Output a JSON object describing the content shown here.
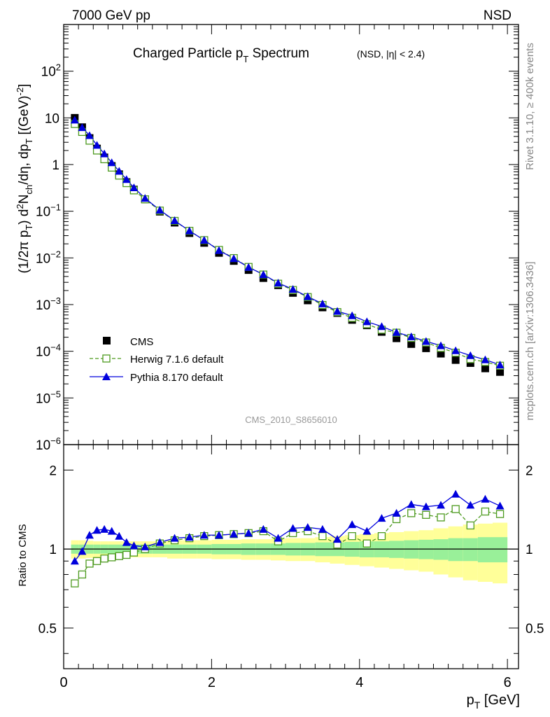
{
  "header": {
    "left": "7000 GeV pp",
    "right": "NSD"
  },
  "side_text": {
    "rivet": "Rivet 3.1.10, ≥ 400k events",
    "mcplots": "mcplots.cern.ch [arXiv:1306.3436]"
  },
  "watermark": "CMS_2010_S8656010",
  "colors": {
    "cms": "#000000",
    "herwig": "#4d9a1f",
    "pythia": "#0000dd",
    "band_inner": "#99f099",
    "band_outer": "#ffff99"
  },
  "chart_data": [
    {
      "type": "scatter",
      "title": "Charged Particle p",
      "title_sub": "T",
      "title_tail": " Spectrum",
      "title_extra": "(NSD, |η| < 2.4)",
      "ylabel": "(1/2π p_T) d²N_ch/dη, dp_T [(GeV)⁻²]",
      "yscale": "log",
      "ylim": [
        1e-06,
        1000
      ],
      "xlim": [
        0,
        6.15
      ],
      "ytick_labels": [
        "10⁻⁶",
        "10⁻⁵",
        "10⁻⁴",
        "10⁻³",
        "10⁻²",
        "10⁻¹",
        "1",
        "10",
        "10²"
      ],
      "x": [
        0.15,
        0.25,
        0.35,
        0.45,
        0.55,
        0.65,
        0.75,
        0.85,
        0.95,
        1.1,
        1.3,
        1.5,
        1.7,
        1.9,
        2.1,
        2.3,
        2.5,
        2.7,
        2.9,
        3.1,
        3.3,
        3.5,
        3.7,
        3.9,
        4.1,
        4.3,
        4.5,
        4.7,
        4.9,
        5.1,
        5.3,
        5.5,
        5.7,
        5.9
      ],
      "series": [
        {
          "name": "CMS",
          "values": [
            10.0,
            6.3,
            3.7,
            2.2,
            1.42,
            0.93,
            0.62,
            0.42,
            0.29,
            0.18,
            0.098,
            0.057,
            0.034,
            0.021,
            0.0128,
            0.0086,
            0.0055,
            0.0037,
            0.0026,
            0.00178,
            0.00123,
            0.00087,
            0.00066,
            0.00047,
            0.00036,
            0.00026,
            0.00019,
            0.000143,
            0.000116,
            8.9e-05,
            6.5e-05,
            5.6e-05,
            4.3e-05,
            3.6e-05
          ]
        },
        {
          "name": "Herwig 7.1.6 default",
          "values": [
            7.4,
            5.0,
            3.25,
            2.0,
            1.3,
            0.86,
            0.58,
            0.4,
            0.28,
            0.18,
            0.103,
            0.062,
            0.038,
            0.024,
            0.0148,
            0.0099,
            0.0064,
            0.0044,
            0.0028,
            0.00205,
            0.00145,
            0.00098,
            0.00069,
            0.00052,
            0.00038,
            0.00029,
            0.00025,
            0.000193,
            0.000154,
            0.000118,
            9.3e-05,
            6.8e-05,
            5.9e-05,
            4.9e-05
          ]
        },
        {
          "name": "Pythia 8.170 default",
          "values": [
            9.0,
            6.2,
            4.2,
            2.6,
            1.7,
            1.1,
            0.72,
            0.48,
            0.32,
            0.19,
            0.106,
            0.063,
            0.038,
            0.024,
            0.0145,
            0.0097,
            0.0063,
            0.0044,
            0.0029,
            0.00213,
            0.00148,
            0.00104,
            0.00072,
            0.00058,
            0.00043,
            0.00034,
            0.000255,
            0.000205,
            0.000163,
            0.000132,
            0.000103,
            8.1e-05,
            6.6e-05,
            5.1e-05
          ]
        }
      ],
      "legend_position": "lower-left"
    },
    {
      "type": "scatter",
      "ylabel": "Ratio to CMS",
      "xlabel": "p_T [GeV]",
      "yscale": "log",
      "ylim": [
        0.35,
        2.5
      ],
      "xlim": [
        0,
        6.15
      ],
      "xtick_labels": [
        "0",
        "2",
        "4",
        "6"
      ],
      "ytick_labels": [
        "0.5",
        "1",
        "2"
      ],
      "reference_line": 1,
      "x": [
        0.15,
        0.25,
        0.35,
        0.45,
        0.55,
        0.65,
        0.75,
        0.85,
        0.95,
        1.1,
        1.3,
        1.5,
        1.7,
        1.9,
        2.1,
        2.3,
        2.5,
        2.7,
        2.9,
        3.1,
        3.3,
        3.5,
        3.7,
        3.9,
        4.1,
        4.3,
        4.5,
        4.7,
        4.9,
        5.1,
        5.3,
        5.5,
        5.7,
        5.9
      ],
      "band_inner_half_width": [
        0.04,
        0.04,
        0.04,
        0.04,
        0.04,
        0.04,
        0.04,
        0.04,
        0.04,
        0.04,
        0.04,
        0.04,
        0.04,
        0.04,
        0.045,
        0.045,
        0.05,
        0.05,
        0.05,
        0.055,
        0.055,
        0.06,
        0.06,
        0.065,
        0.07,
        0.07,
        0.075,
        0.08,
        0.085,
        0.09,
        0.1,
        0.1,
        0.11,
        0.11
      ],
      "band_outer_half_width": [
        0.08,
        0.08,
        0.075,
        0.07,
        0.07,
        0.07,
        0.07,
        0.07,
        0.07,
        0.07,
        0.07,
        0.08,
        0.08,
        0.08,
        0.085,
        0.085,
        0.09,
        0.09,
        0.095,
        0.1,
        0.1,
        0.11,
        0.12,
        0.13,
        0.14,
        0.15,
        0.16,
        0.17,
        0.18,
        0.2,
        0.22,
        0.24,
        0.25,
        0.26
      ],
      "series": [
        {
          "name": "Herwig 7.1.6 default",
          "values": [
            0.74,
            0.8,
            0.88,
            0.9,
            0.92,
            0.93,
            0.94,
            0.95,
            0.97,
            1.0,
            1.05,
            1.08,
            1.1,
            1.12,
            1.13,
            1.14,
            1.15,
            1.17,
            1.07,
            1.15,
            1.17,
            1.12,
            1.04,
            1.12,
            1.05,
            1.12,
            1.3,
            1.37,
            1.35,
            1.32,
            1.42,
            1.23,
            1.39,
            1.36
          ]
        },
        {
          "name": "Pythia 8.170 default",
          "values": [
            0.9,
            0.98,
            1.13,
            1.18,
            1.19,
            1.17,
            1.12,
            1.06,
            1.03,
            1.02,
            1.06,
            1.1,
            1.11,
            1.13,
            1.13,
            1.14,
            1.15,
            1.19,
            1.1,
            1.2,
            1.21,
            1.19,
            1.09,
            1.24,
            1.17,
            1.31,
            1.37,
            1.48,
            1.45,
            1.47,
            1.62,
            1.47,
            1.55,
            1.46
          ]
        }
      ]
    }
  ]
}
